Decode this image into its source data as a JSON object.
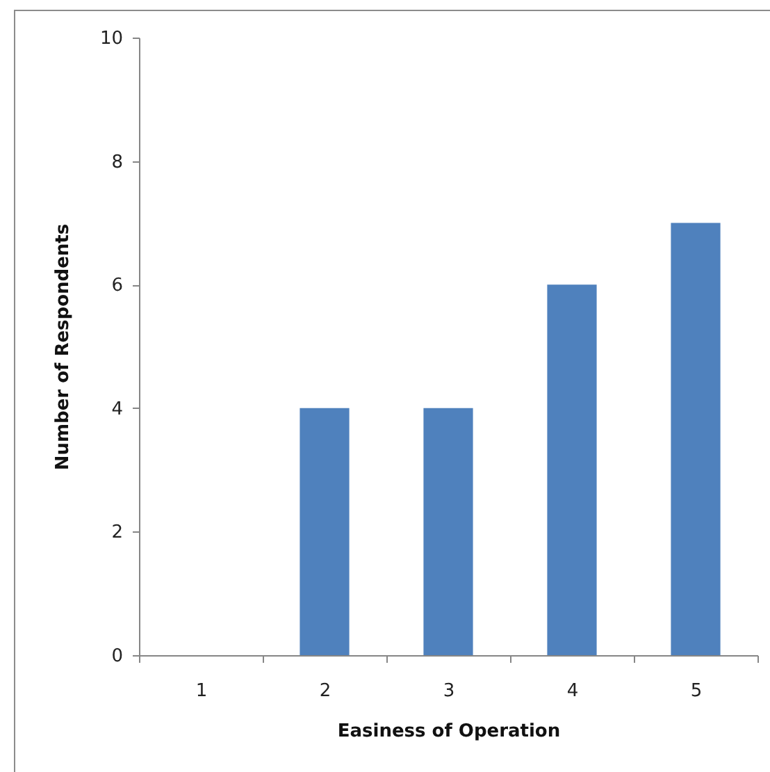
{
  "chart_data": {
    "type": "bar",
    "xlabel": "Easiness of Operation",
    "ylabel": "Number of Respondents",
    "categories": [
      "1",
      "2",
      "3",
      "4",
      "5"
    ],
    "values": [
      0,
      4,
      4,
      6,
      7
    ],
    "color": "#4f81bd",
    "ylim": [
      0,
      10
    ],
    "yticks": [
      0,
      2,
      4,
      6,
      8,
      10
    ],
    "grid": false
  }
}
